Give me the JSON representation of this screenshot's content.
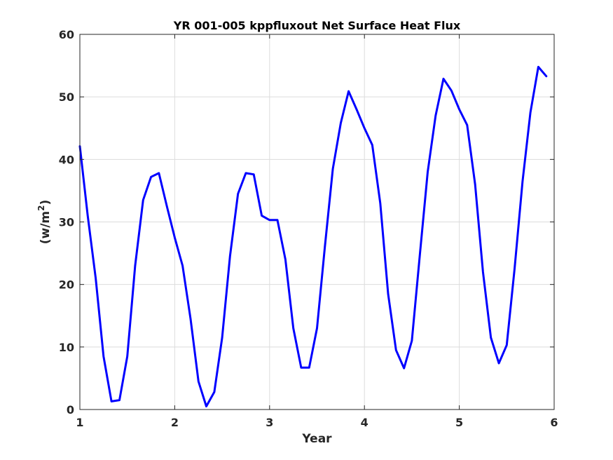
{
  "chart_data": {
    "type": "line",
    "title": "YR 001-005 kppfluxout Net Surface Heat Flux",
    "xlabel": "Year",
    "ylabel": "(w/m",
    "ylabel_superscript": "2",
    "ylabel_close": ")",
    "xlim": [
      1,
      6
    ],
    "ylim": [
      0,
      60
    ],
    "xticks": [
      1,
      2,
      3,
      4,
      5,
      6
    ],
    "xtick_labels": [
      "1",
      "2",
      "3",
      "4",
      "5",
      "6"
    ],
    "yticks": [
      0,
      10,
      20,
      30,
      40,
      50,
      60
    ],
    "ytick_labels": [
      "0",
      "10",
      "20",
      "30",
      "40",
      "50",
      "60"
    ],
    "grid": true,
    "line_color": "#0000ff",
    "series": [
      {
        "x": [
          1.0,
          1.083,
          1.167,
          1.25,
          1.333,
          1.417,
          1.5,
          1.583,
          1.667,
          1.75,
          1.833,
          1.917,
          2.0,
          2.083,
          2.167,
          2.25,
          2.333,
          2.417,
          2.5,
          2.583,
          2.667,
          2.75,
          2.833,
          2.917,
          3.0,
          3.083,
          3.167,
          3.25,
          3.333,
          3.417,
          3.5,
          3.583,
          3.667,
          3.75,
          3.833,
          3.917,
          4.0,
          4.083,
          4.167,
          4.25,
          4.333,
          4.417,
          4.5,
          4.583,
          4.667,
          4.75,
          4.833,
          4.917,
          5.0,
          5.083,
          5.167,
          5.25,
          5.333,
          5.417,
          5.5,
          5.583,
          5.667,
          5.75,
          5.833,
          5.917
        ],
        "y": [
          42.1,
          31.0,
          21.0,
          8.5,
          1.3,
          1.5,
          8.5,
          23.0,
          33.5,
          37.2,
          37.8,
          32.5,
          27.5,
          23.0,
          14.5,
          4.5,
          0.5,
          2.8,
          11.5,
          24.5,
          34.5,
          37.8,
          37.6,
          31.0,
          30.3,
          30.3,
          24.0,
          13.0,
          6.7,
          6.7,
          13.0,
          26.0,
          38.5,
          45.8,
          50.9,
          48.0,
          45.0,
          42.3,
          33.0,
          18.5,
          9.5,
          6.6,
          11.0,
          24.5,
          38.0,
          47.0,
          52.9,
          51.0,
          48.0,
          45.5,
          36.0,
          22.0,
          11.5,
          7.4,
          10.3,
          22.5,
          36.5,
          47.5,
          54.8,
          53.3
        ]
      }
    ]
  }
}
